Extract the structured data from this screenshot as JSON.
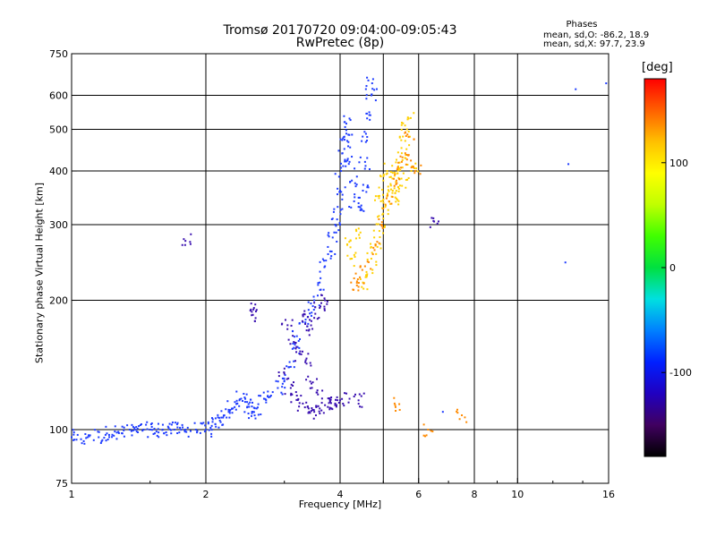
{
  "chart_data": {
    "type": "scatter",
    "title": "Tromsø 20170720 09:04:00-09:05:43",
    "subtitle": "RwPretec (8p)",
    "xlabel": "Frequency [MHz]",
    "ylabel": "Stationary phase Virtual Height [km]",
    "x_scale": "log",
    "y_scale": "log",
    "xlim": [
      1,
      16
    ],
    "ylim": [
      75,
      750
    ],
    "x_ticks": [
      1,
      2,
      4,
      6,
      8,
      10,
      16
    ],
    "x_tick_labels": [
      "1",
      "2",
      "4",
      "6",
      "8",
      "10",
      "16"
    ],
    "y_ticks": [
      75,
      100,
      200,
      300,
      400,
      500,
      600,
      750
    ],
    "y_tick_labels": [
      "75",
      "100",
      "200",
      "300",
      "400",
      "500",
      "600",
      "750"
    ],
    "grid": true,
    "colorbar": {
      "title": "[deg]",
      "range": [
        -180,
        180
      ],
      "ticks": [
        100,
        0,
        -100
      ],
      "tick_labels": [
        "100",
        "0",
        "-100"
      ],
      "colors": [
        "#000000",
        "#400060",
        "#2000c0",
        "#0020ff",
        "#0080ff",
        "#00e0e0",
        "#00e040",
        "#40ff00",
        "#c0ff00",
        "#ffff00",
        "#ffc000",
        "#ff6000",
        "#ff0000"
      ]
    },
    "stats": {
      "header": "Phases",
      "line1": "mean, sd,O: -86.2, 18.9",
      "line2": "mean, sd,X:  97.7, 23.9"
    },
    "point_colors": {
      "o_mode": "#1e3cff",
      "o_mode_dark": "#3a10b0",
      "x_mode": "#ffd000",
      "x_mode_warm": "#ff8a00"
    },
    "series": [
      {
        "mode": "O",
        "color_key": "o_mode",
        "points": [
          [
            1.0,
            96
          ],
          [
            1.05,
            95
          ],
          [
            1.1,
            97
          ],
          [
            1.15,
            96
          ],
          [
            1.2,
            98
          ],
          [
            1.25,
            99
          ],
          [
            1.3,
            98
          ],
          [
            1.35,
            100
          ],
          [
            1.4,
            99
          ],
          [
            1.45,
            100
          ],
          [
            1.5,
            100
          ],
          [
            1.55,
            99
          ],
          [
            1.6,
            100
          ],
          [
            1.65,
            101
          ],
          [
            1.7,
            100
          ],
          [
            1.75,
            101
          ],
          [
            1.8,
            100
          ],
          [
            1.9,
            100
          ],
          [
            2.0,
            100
          ],
          [
            2.05,
            101
          ],
          [
            2.1,
            103
          ],
          [
            2.15,
            105
          ],
          [
            2.2,
            108
          ],
          [
            2.25,
            110
          ],
          [
            2.3,
            112
          ],
          [
            2.35,
            115
          ],
          [
            2.4,
            118
          ],
          [
            2.45,
            116
          ],
          [
            2.5,
            113
          ],
          [
            2.55,
            110
          ],
          [
            2.6,
            112
          ],
          [
            2.7,
            118
          ],
          [
            2.8,
            120
          ],
          [
            2.9,
            125
          ],
          [
            3.0,
            130
          ],
          [
            3.1,
            140
          ],
          [
            3.15,
            155
          ],
          [
            3.2,
            165
          ],
          [
            3.3,
            178
          ],
          [
            3.4,
            190
          ],
          [
            3.5,
            200
          ],
          [
            3.6,
            220
          ],
          [
            3.7,
            240
          ],
          [
            3.8,
            260
          ],
          [
            3.85,
            280
          ],
          [
            3.9,
            300
          ],
          [
            3.95,
            330
          ],
          [
            4.0,
            360
          ],
          [
            4.02,
            400
          ],
          [
            4.05,
            440
          ],
          [
            4.08,
            480
          ],
          [
            4.1,
            520
          ],
          [
            4.15,
            470
          ],
          [
            4.2,
            420
          ],
          [
            4.25,
            380
          ],
          [
            4.3,
            340
          ],
          [
            4.4,
            330
          ],
          [
            4.5,
            360
          ],
          [
            4.55,
            420
          ],
          [
            4.6,
            480
          ],
          [
            4.65,
            540
          ],
          [
            4.7,
            600
          ],
          [
            4.72,
            640
          ]
        ]
      },
      {
        "mode": "O-low",
        "color_key": "o_mode_dark",
        "points": [
          [
            3.0,
            135
          ],
          [
            3.1,
            125
          ],
          [
            3.2,
            120
          ],
          [
            3.3,
            115
          ],
          [
            3.4,
            112
          ],
          [
            3.5,
            110
          ],
          [
            3.6,
            112
          ],
          [
            3.7,
            114
          ],
          [
            3.8,
            116
          ],
          [
            3.9,
            115
          ],
          [
            4.0,
            117
          ],
          [
            4.2,
            118
          ],
          [
            4.4,
            117
          ],
          [
            3.35,
            145
          ],
          [
            3.45,
            128
          ],
          [
            3.55,
            122
          ],
          [
            3.25,
            150
          ],
          [
            3.15,
            160
          ],
          [
            3.05,
            175
          ],
          [
            3.3,
            185
          ],
          [
            3.4,
            170
          ],
          [
            3.5,
            182
          ],
          [
            3.6,
            192
          ],
          [
            3.7,
            200
          ],
          [
            2.6,
            190
          ],
          [
            2.55,
            185
          ],
          [
            1.8,
            275
          ],
          [
            6.5,
            305
          ]
        ]
      },
      {
        "mode": "X",
        "color_key": "x_mode",
        "points": [
          [
            4.5,
            220
          ],
          [
            4.6,
            230
          ],
          [
            4.7,
            250
          ],
          [
            4.8,
            270
          ],
          [
            4.9,
            290
          ],
          [
            5.0,
            310
          ],
          [
            5.05,
            330
          ],
          [
            5.1,
            350
          ],
          [
            5.2,
            370
          ],
          [
            5.3,
            390
          ],
          [
            5.4,
            410
          ],
          [
            5.5,
            440
          ],
          [
            5.6,
            470
          ],
          [
            5.65,
            500
          ],
          [
            5.7,
            530
          ],
          [
            4.9,
            350
          ],
          [
            5.0,
            380
          ],
          [
            5.1,
            400
          ],
          [
            5.25,
            360
          ],
          [
            5.35,
            345
          ],
          [
            5.45,
            370
          ],
          [
            5.55,
            395
          ],
          [
            5.8,
            410
          ],
          [
            4.35,
            290
          ],
          [
            4.25,
            250
          ],
          [
            4.15,
            270
          ]
        ]
      },
      {
        "mode": "X-warm",
        "color_key": "x_mode_warm",
        "points": [
          [
            4.3,
            225
          ],
          [
            4.4,
            215
          ],
          [
            4.55,
            240
          ],
          [
            4.75,
            265
          ],
          [
            4.95,
            300
          ],
          [
            5.15,
            340
          ],
          [
            5.35,
            380
          ],
          [
            5.6,
            440
          ],
          [
            5.7,
            480
          ],
          [
            5.5,
            420
          ],
          [
            5.9,
            400
          ],
          [
            6.3,
            100
          ],
          [
            7.5,
            108
          ],
          [
            5.3,
            115
          ]
        ]
      },
      {
        "mode": "scattered",
        "color_key": "o_mode",
        "points": [
          [
            13.5,
            620
          ],
          [
            13.0,
            415
          ],
          [
            12.8,
            245
          ],
          [
            15.8,
            640
          ],
          [
            6.8,
            110
          ],
          [
            4.0,
            300
          ]
        ]
      }
    ]
  }
}
